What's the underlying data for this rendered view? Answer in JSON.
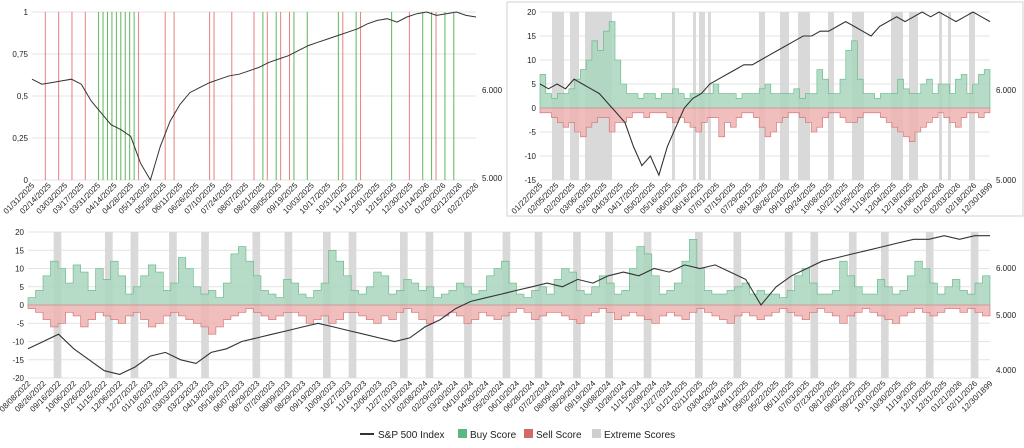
{
  "colors": {
    "index_line": "#333333",
    "buy": "#a9d6bd",
    "buy_edge": "#5cb783",
    "sell": "#efb3b3",
    "sell_edge": "#d36a6a",
    "extreme": "#d9d9d9",
    "buy_line": "#5cb85c",
    "sell_line": "#e68080",
    "grid": "#e3e3e3"
  },
  "legend": {
    "index": "S&P 500 Index",
    "buy": "Buy Score",
    "sell": "Sell Score",
    "extreme": "Extreme Scores"
  },
  "chart_data": [
    {
      "type": "line",
      "legend": "none",
      "grid": true,
      "y_left": {
        "ticks": [
          "0",
          "0,25",
          "0,5",
          "0,75",
          "1"
        ],
        "range": [
          0,
          1
        ]
      },
      "y_right": {
        "ticks": [
          "5.000",
          "6.000"
        ]
      },
      "x_ticks": [
        "01/31/2025",
        "02/14/2025",
        "03/03/2025",
        "03/17/2025",
        "03/31/2025",
        "04/14/2025",
        "04/28/2025",
        "05/13/2025",
        "05/28/2025",
        "06/11/2025",
        "06/26/2025",
        "07/10/2025",
        "07/24/2025",
        "08/07/2025",
        "08/21/2025",
        "09/05/2025",
        "09/19/2025",
        "10/03/2025",
        "10/17/2025",
        "10/31/2025",
        "11/14/2025",
        "12/01/2025",
        "12/15/2025",
        "12/30/2025",
        "01/14/2026",
        "01/29/2026",
        "02/12/2026",
        "02/27/2026"
      ],
      "series": [
        {
          "values": [
            0.6,
            0.57,
            0.58,
            0.59,
            0.6,
            0.57,
            0.47,
            0.4,
            0.33,
            0.3,
            0.26,
            0.1,
            0.0,
            0.2,
            0.35,
            0.45,
            0.52,
            0.55,
            0.58,
            0.6,
            0.62,
            0.63,
            0.65,
            0.67,
            0.7,
            0.72,
            0.74,
            0.77,
            0.8,
            0.82,
            0.84,
            0.86,
            0.88,
            0.9,
            0.93,
            0.95,
            0.96,
            0.94,
            0.97,
            0.99,
            1.0,
            0.98,
            0.99,
            1.0,
            0.98,
            0.97
          ]
        }
      ],
      "buy_signals": [
        15,
        16,
        17,
        18,
        19,
        20,
        21,
        22,
        23,
        52,
        55,
        59,
        62,
        69,
        73,
        81,
        88,
        90,
        93,
        95
      ],
      "sell_signals": [
        3,
        6,
        9,
        12,
        24,
        30,
        32,
        40,
        41,
        45,
        50,
        53,
        56,
        58,
        70,
        74,
        85,
        91
      ]
    },
    {
      "type": "area",
      "legend": "none",
      "grid": true,
      "y_left": {
        "ticks": [
          "-15",
          "-10",
          "-5",
          "0",
          "5",
          "10",
          "15",
          "20"
        ],
        "range": [
          -15,
          20
        ]
      },
      "y_right": {
        "ticks": [
          "5.000",
          "6.000"
        ]
      },
      "x_ticks": [
        "01/22/2025",
        "02/05/2025",
        "02/20/2025",
        "03/06/2025",
        "03/20/2025",
        "04/03/2025",
        "04/17/2025",
        "05/02/2025",
        "05/16/2025",
        "06/02/2025",
        "06/16/2025",
        "07/01/2025",
        "07/15/2025",
        "07/29/2025",
        "08/12/2025",
        "08/26/2025",
        "09/10/2025",
        "09/24/2025",
        "10/08/2025",
        "10/22/2025",
        "11/05/2025",
        "11/19/2025",
        "12/04/2025",
        "12/18/2025",
        "01/06/2026",
        "01/20/2026",
        "02/03/2026",
        "02/18/2026",
        "12/30/1899"
      ],
      "buy_score": [
        7,
        3,
        2,
        3,
        3,
        4,
        6,
        8,
        10,
        14,
        12,
        16,
        18,
        10,
        5,
        3,
        3,
        2,
        3,
        3,
        2,
        3,
        3,
        4,
        3,
        2,
        3,
        3,
        3,
        3,
        5,
        3,
        3,
        3,
        2,
        3,
        3,
        3,
        4,
        5,
        3,
        3,
        3,
        3,
        4,
        2,
        3,
        3,
        8,
        6,
        3,
        3,
        6,
        12,
        14,
        6,
        3,
        3,
        2,
        3,
        3,
        3,
        6,
        4,
        3,
        3,
        5,
        6,
        3,
        5,
        5,
        3,
        6,
        7,
        3,
        5,
        7,
        8
      ],
      "sell_score": [
        -1,
        -1,
        -2,
        -3,
        -4,
        -3,
        -5,
        -6,
        -4,
        -3,
        -2,
        -2,
        -5,
        -3,
        -3,
        -2,
        -1,
        -1,
        -2,
        -1,
        -1,
        -1,
        -2,
        -3,
        -2,
        -3,
        -4,
        -5,
        -3,
        -2,
        -2,
        -6,
        -3,
        -4,
        -2,
        -1,
        -1,
        -2,
        -4,
        -6,
        -5,
        -3,
        -2,
        -1,
        -1,
        -2,
        -3,
        -5,
        -4,
        -2,
        -1,
        -1,
        -2,
        -3,
        -3,
        -2,
        -1,
        -1,
        -1,
        -2,
        -3,
        -4,
        -5,
        -6,
        -7,
        -5,
        -4,
        -3,
        -2,
        -1,
        -2,
        -3,
        -4,
        -2,
        -1,
        -1,
        -2,
        -1
      ],
      "extreme_bands": [
        [
          4,
          8
        ],
        [
          10,
          13
        ],
        [
          15,
          24
        ],
        [
          44,
          45
        ],
        [
          51,
          52
        ],
        [
          53,
          55
        ],
        [
          56,
          57
        ],
        [
          73,
          75
        ],
        [
          80,
          83
        ],
        [
          86,
          90
        ],
        [
          96,
          98
        ],
        [
          104,
          108
        ],
        [
          117,
          121
        ],
        [
          123,
          126
        ],
        [
          133,
          134
        ],
        [
          136,
          137
        ],
        [
          143,
          145
        ]
      ],
      "series": [
        {
          "name": "S&P 500 Index",
          "values": [
            5,
            4,
            5,
            4,
            6,
            5,
            4,
            3,
            1,
            -1,
            -3,
            -8,
            -12,
            -10,
            -14,
            -8,
            -4,
            0,
            2,
            3,
            5,
            6,
            7,
            8,
            9,
            9,
            10,
            11,
            12,
            13,
            14,
            15,
            15,
            16,
            16,
            17,
            18,
            17,
            16,
            15,
            17,
            18,
            19,
            18,
            19,
            20,
            19,
            20,
            19,
            18,
            19,
            20,
            19,
            18
          ]
        }
      ]
    },
    {
      "type": "area",
      "legend": "bottom",
      "grid": true,
      "y_left": {
        "ticks": [
          "-20",
          "-15",
          "-10",
          "-5",
          "0",
          "5",
          "10",
          "15",
          "20"
        ],
        "range": [
          -20,
          20
        ]
      },
      "y_right": {
        "ticks": [
          "4.000",
          "5.000",
          "6.000"
        ]
      },
      "x_ticks": [
        "08/08/2022",
        "08/26/2022",
        "09/16/2022",
        "10/06/2022",
        "10/26/2022",
        "11/15/2022",
        "12/06/2022",
        "12/27/2022",
        "01/18/2023",
        "02/07/2023",
        "03/03/2023",
        "03/23/2023",
        "04/13/2023",
        "05/18/2023",
        "06/07/2023",
        "06/29/2023",
        "07/20/2023",
        "08/09/2023",
        "08/29/2023",
        "09/19/2023",
        "10/09/2023",
        "10/27/2023",
        "11/16/2023",
        "12/06/2023",
        "12/27/2023",
        "01/18/2024",
        "02/08/2024",
        "02/29/2024",
        "03/20/2024",
        "04/10/2024",
        "04/30/2024",
        "05/20/2024",
        "06/10/2024",
        "06/28/2024",
        "07/22/2024",
        "08/09/2024",
        "08/29/2024",
        "09/19/2024",
        "10/08/2024",
        "10/28/2024",
        "11/15/2024",
        "12/09/2024",
        "12/27/2024",
        "01/21/2025",
        "02/11/2025",
        "03/04/2025",
        "03/24/2025",
        "04/11/2025",
        "05/02/2025",
        "05/22/2025",
        "06/11/2025",
        "07/03/2025",
        "07/23/2025",
        "08/12/2025",
        "09/02/2025",
        "09/22/2025",
        "10/10/2025",
        "10/30/2025",
        "11/19/2025",
        "12/10/2025",
        "12/31/2025",
        "01/21/2026",
        "02/11/2026",
        "12/30/1899"
      ],
      "buy_score": [
        2,
        4,
        8,
        12,
        10,
        6,
        11,
        9,
        4,
        10,
        7,
        12,
        8,
        3,
        5,
        8,
        11,
        9,
        4,
        6,
        13,
        10,
        5,
        3,
        4,
        2,
        6,
        14,
        16,
        12,
        8,
        4,
        3,
        2,
        7,
        6,
        3,
        2,
        4,
        6,
        15,
        12,
        8,
        4,
        3,
        5,
        9,
        8,
        3,
        4,
        7,
        6,
        4,
        5,
        2,
        3,
        4,
        6,
        5,
        3,
        4,
        8,
        10,
        12,
        6,
        3,
        2,
        4,
        5,
        3,
        7,
        10,
        9,
        4,
        3,
        5,
        8,
        6,
        3,
        4,
        10,
        16,
        14,
        8,
        3,
        4,
        6,
        12,
        18,
        10,
        4,
        3,
        3,
        4,
        5,
        6,
        3,
        4,
        3,
        3,
        2,
        4,
        8,
        10,
        6,
        3,
        3,
        4,
        12,
        8,
        5,
        3,
        3,
        7,
        5,
        3,
        4,
        8,
        12,
        10,
        6,
        3,
        5,
        7,
        4,
        3,
        6,
        8
      ],
      "sell_score": [
        -1,
        -2,
        -4,
        -6,
        -5,
        -2,
        -3,
        -6,
        -4,
        -2,
        -3,
        -4,
        -5,
        -3,
        -2,
        -4,
        -6,
        -5,
        -3,
        -2,
        -3,
        -4,
        -5,
        -6,
        -8,
        -6,
        -4,
        -3,
        -2,
        -1,
        -2,
        -3,
        -4,
        -3,
        -2,
        -2,
        -3,
        -5,
        -4,
        -3,
        -5,
        -4,
        -2,
        -2,
        -3,
        -4,
        -5,
        -3,
        -4,
        -2,
        -1,
        -2,
        -4,
        -5,
        -3,
        -3,
        -2,
        -3,
        -5,
        -4,
        -2,
        -3,
        -4,
        -3,
        -2,
        -1,
        -2,
        -4,
        -3,
        -2,
        -2,
        -3,
        -4,
        -5,
        -3,
        -2,
        -1,
        -2,
        -4,
        -3,
        -2,
        -3,
        -4,
        -5,
        -3,
        -2,
        -3,
        -4,
        -2,
        -1,
        -2,
        -3,
        -4,
        -5,
        -3,
        -2,
        -3,
        -4,
        -3,
        -2,
        -1,
        -2,
        -3,
        -4,
        -2,
        -1,
        -2,
        -3,
        -5,
        -3,
        -2,
        -1,
        -2,
        -3,
        -4,
        -5,
        -3,
        -2,
        -1,
        -2,
        -3,
        -2,
        -1,
        -1,
        -2,
        -1,
        -2,
        -3
      ],
      "series": [
        {
          "name": "S&P 500 Index",
          "values": [
            -12,
            -10,
            -8,
            -12,
            -15,
            -18,
            -19,
            -17,
            -14,
            -13,
            -15,
            -16,
            -13,
            -12,
            -10,
            -9,
            -8,
            -7,
            -6,
            -5,
            -6,
            -7,
            -8,
            -9,
            -10,
            -9,
            -6,
            -4,
            -1,
            1,
            2,
            3,
            4,
            5,
            6,
            5,
            7,
            6,
            8,
            9,
            8,
            10,
            9,
            11,
            10,
            11,
            9,
            7,
            0,
            5,
            8,
            10,
            12,
            13,
            14,
            15,
            16,
            17,
            18,
            18,
            19,
            18,
            19,
            19
          ]
        }
      ]
    }
  ]
}
